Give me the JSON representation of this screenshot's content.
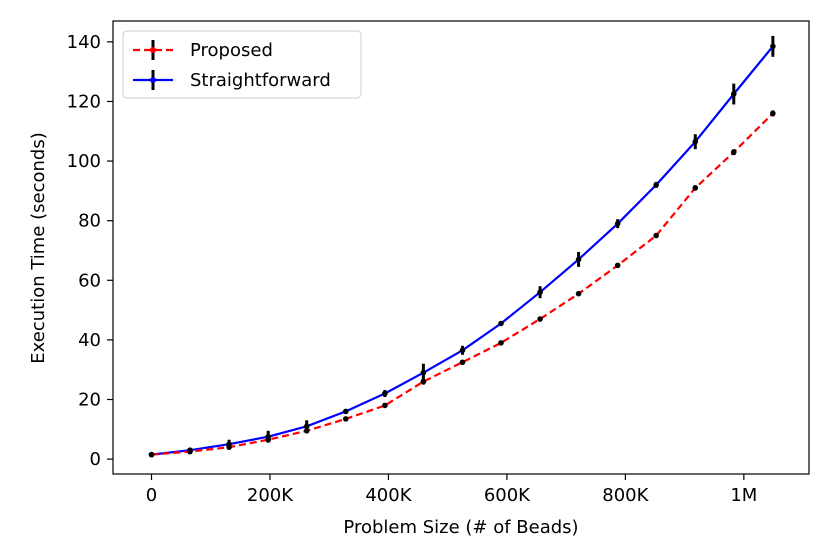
{
  "chart_data": {
    "type": "line",
    "title": "",
    "xlabel": "Problem Size (# of Beads)",
    "ylabel": "Execution Time (seconds)",
    "xlim": [
      -65000,
      1110000
    ],
    "ylim": [
      -5,
      147
    ],
    "x_ticks": [
      {
        "value": 0,
        "label": "0"
      },
      {
        "value": 200000,
        "label": "200K"
      },
      {
        "value": 400000,
        "label": "400K"
      },
      {
        "value": 600000,
        "label": "600K"
      },
      {
        "value": 800000,
        "label": "800K"
      },
      {
        "value": 1000000,
        "label": "1M"
      }
    ],
    "y_ticks": [
      {
        "value": 0,
        "label": "0"
      },
      {
        "value": 20,
        "label": "20"
      },
      {
        "value": 40,
        "label": "40"
      },
      {
        "value": 60,
        "label": "60"
      },
      {
        "value": 80,
        "label": "80"
      },
      {
        "value": 100,
        "label": "100"
      },
      {
        "value": 120,
        "label": "120"
      },
      {
        "value": 140,
        "label": "140"
      }
    ],
    "grid": false,
    "legend_position": "top-left",
    "x": [
      0,
      65000,
      131000,
      197000,
      262000,
      328000,
      394000,
      459000,
      525000,
      590000,
      656000,
      721000,
      787000,
      852000,
      918000,
      983000,
      1049000
    ],
    "series": [
      {
        "name": "Proposed",
        "color": "#ff0000",
        "line_style": "dashed",
        "values": [
          1.5,
          2.5,
          4.0,
          6.5,
          9.5,
          13.5,
          18.0,
          26.0,
          32.5,
          39.0,
          47.0,
          55.5,
          65.0,
          75.0,
          91.0,
          103.0,
          116.0
        ],
        "errors": [
          0.3,
          0.3,
          0.5,
          0.8,
          0.5,
          0.5,
          0.8,
          1.0,
          0.7,
          0.8,
          0.6,
          0.7,
          0.8,
          0.8,
          0.9,
          1.0,
          1.0
        ]
      },
      {
        "name": "Straightforward",
        "color": "#0000ff",
        "line_style": "solid",
        "values": [
          1.5,
          3.0,
          5.0,
          7.5,
          11.0,
          16.0,
          22.0,
          29.0,
          36.5,
          45.5,
          56.0,
          67.0,
          79.0,
          92.0,
          106.5,
          122.5,
          138.5
        ],
        "errors": [
          0.4,
          0.6,
          1.5,
          2.0,
          2.0,
          0.8,
          1.2,
          3.0,
          1.5,
          0.6,
          2.0,
          2.5,
          1.5,
          1.0,
          2.5,
          3.5,
          3.5
        ]
      }
    ]
  }
}
